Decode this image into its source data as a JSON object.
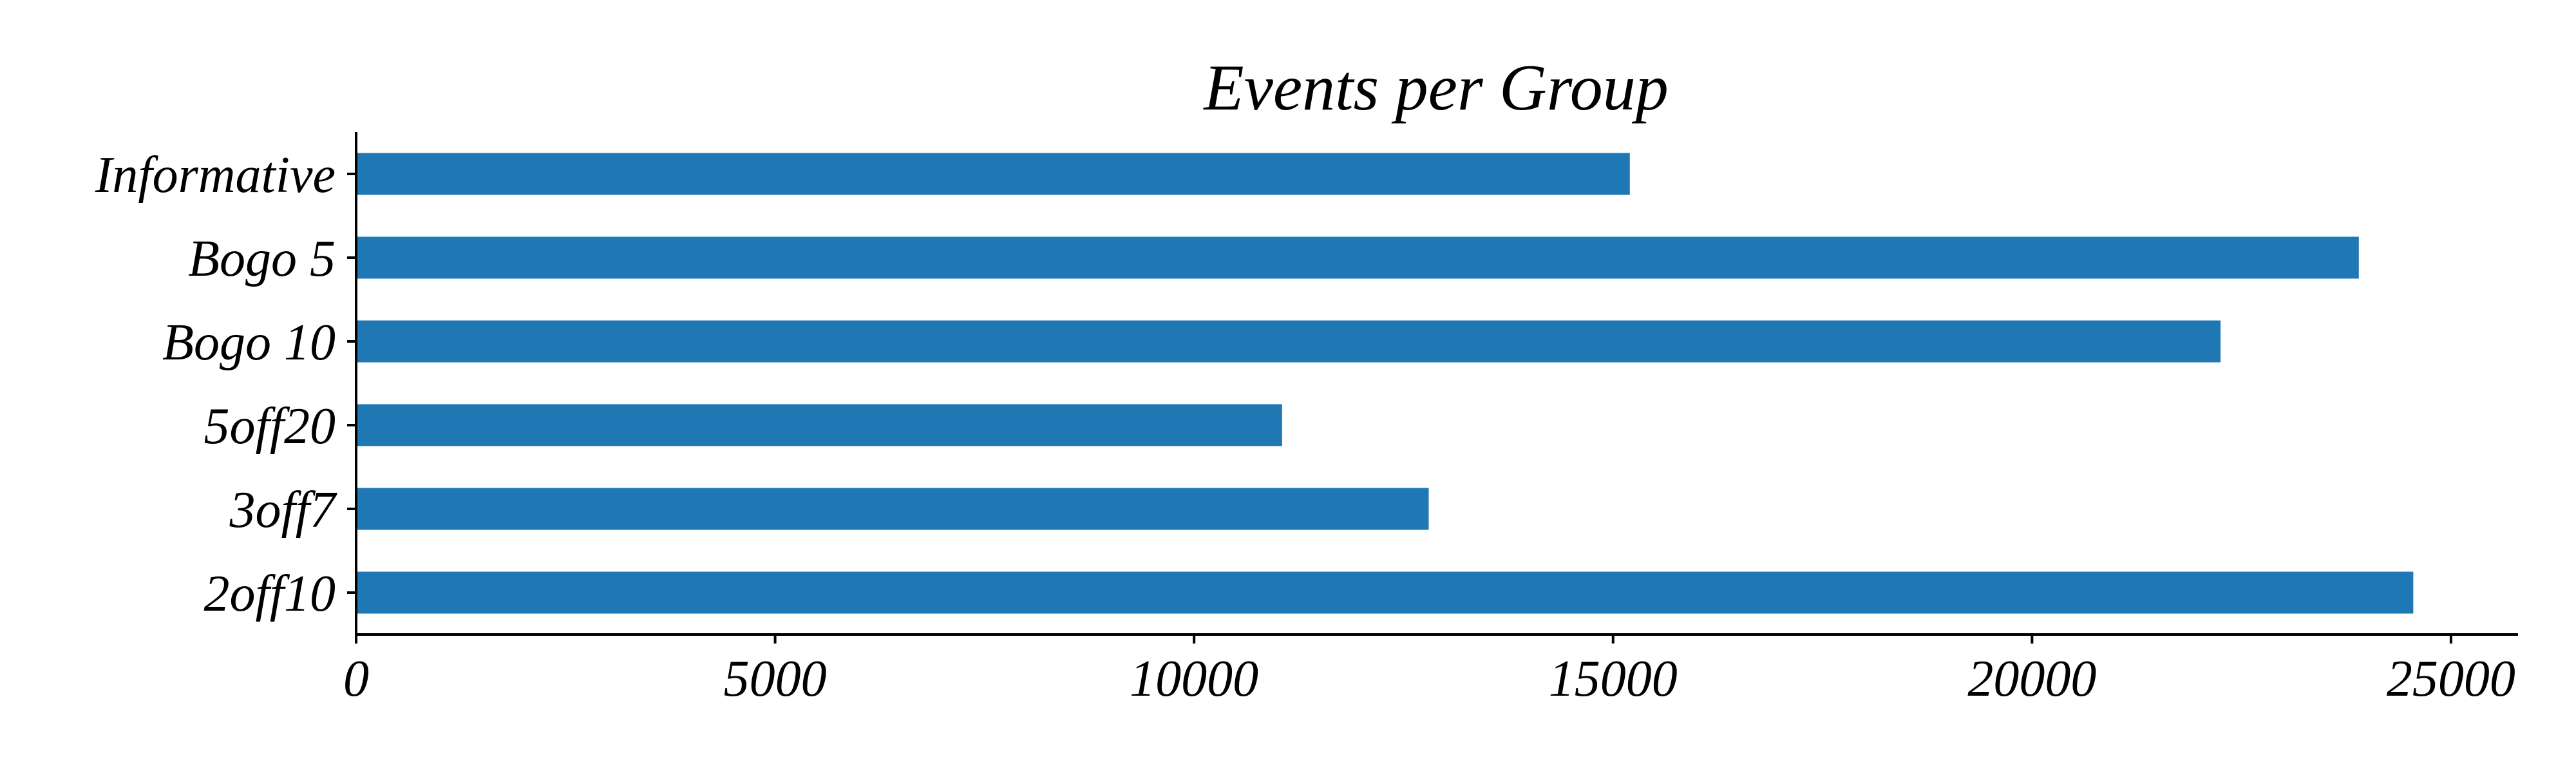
{
  "chart_data": {
    "type": "bar",
    "orientation": "horizontal",
    "title": "Events per Group",
    "xlabel": "",
    "ylabel": "",
    "categories": [
      "Informative",
      "Bogo 5",
      "Bogo 10",
      "5off20",
      "3off7",
      "2off10"
    ],
    "values": [
      15200,
      23900,
      22250,
      11050,
      12800,
      24550
    ],
    "xlim": [
      0,
      25800
    ],
    "xticks": [
      0,
      5000,
      10000,
      15000,
      20000,
      25000
    ],
    "xtick_labels": [
      "0",
      "5000",
      "10000",
      "15000",
      "20000",
      "25000"
    ],
    "grid": false,
    "legend": "none",
    "bar_color": "#1f77b4"
  }
}
